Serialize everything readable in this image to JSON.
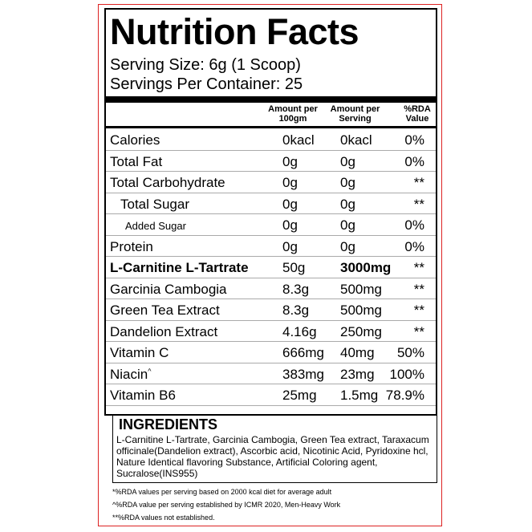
{
  "label": {
    "title": "Nutrition Facts",
    "serving_size": "Serving Size: 6g (1 Scoop)",
    "servings_per_container": "Servings Per Container: 25",
    "headers": [
      "Amount per 100gm",
      "Amount per Serving",
      "%RDA Value"
    ],
    "rows": [
      {
        "name": "Calories",
        "per_100g": "0kacl",
        "per_serving": "0kacl",
        "rda": "0%"
      },
      {
        "name": "Total Fat",
        "per_100g": "0g",
        "per_serving": "0g",
        "rda": "0%"
      },
      {
        "name": "Total Carbohydrate",
        "per_100g": "0g",
        "per_serving": "0g",
        "rda": "**"
      },
      {
        "name": "Total Sugar",
        "per_100g": "0g",
        "per_serving": "0g",
        "rda": "**",
        "style": "indent"
      },
      {
        "name": "Added Sugar",
        "per_100g": "0g",
        "per_serving": "0g",
        "rda": "0%",
        "style": "small"
      },
      {
        "name": "Protein",
        "per_100g": "0g",
        "per_serving": "0g",
        "rda": "0%"
      },
      {
        "name": "L-Carnitine L-Tartrate",
        "per_100g": "50g",
        "per_serving": "3000mg",
        "rda": "**",
        "style": "bold"
      },
      {
        "name": "Garcinia Cambogia",
        "per_100g": "8.3g",
        "per_serving": "500mg",
        "rda": "**"
      },
      {
        "name": "Green Tea Extract",
        "per_100g": "8.3g",
        "per_serving": "500mg",
        "rda": "**"
      },
      {
        "name": "Dandelion Extract",
        "per_100g": "4.16g",
        "per_serving": "250mg",
        "rda": "**"
      },
      {
        "name": "Vitamin C",
        "per_100g": "666mg",
        "per_serving": "40mg",
        "rda": "50%"
      },
      {
        "name": "Niacin",
        "marker": "^",
        "per_100g": "383mg",
        "per_serving": "23mg",
        "rda": "100%"
      },
      {
        "name": "Vitamin B6",
        "per_100g": "25mg",
        "per_serving": "1.5mg",
        "rda": "78.9%"
      }
    ],
    "ingredients_title": "INGREDIENTS",
    "ingredients": "L-Carnitine L-Tartrate, Garcinia Cambogia, Green Tea extract, Taraxacum officinale(Dandelion extract), Ascorbic acid, Nicotinic Acid, Pyridoxine hcl, Nature Identical flavoring Substance, Artificial Coloring agent, Sucralose(INS955)",
    "footnotes": [
      "*%RDA values per serving based on 2000 kcal diet for average adult",
      "^%RDA value per serving established by ICMR 2020, Men-Heavy Work",
      "**%RDA values not established."
    ]
  }
}
